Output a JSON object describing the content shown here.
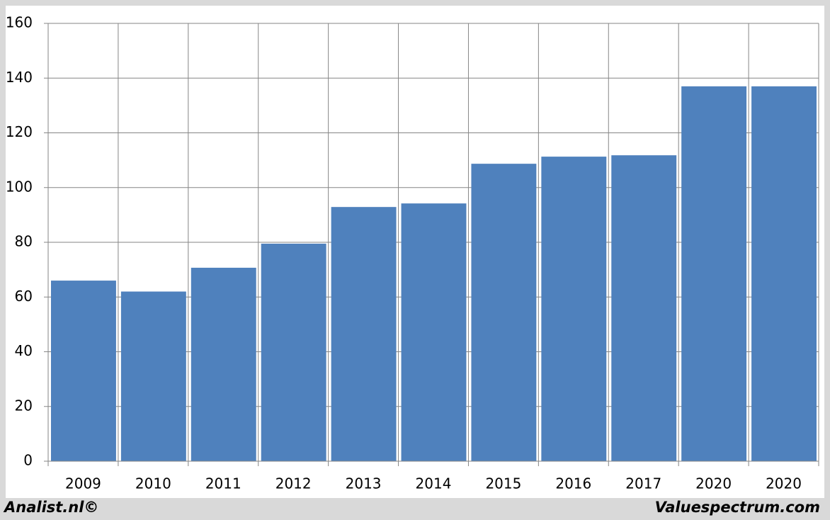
{
  "chart_data": {
    "type": "bar",
    "categories": [
      "2009",
      "2010",
      "2011",
      "2012",
      "2013",
      "2014",
      "2015",
      "2016",
      "2017",
      "2020",
      "2020"
    ],
    "values": [
      66.0,
      62.0,
      70.7,
      79.5,
      92.9,
      94.2,
      108.7,
      111.3,
      111.8,
      137.0,
      137.0
    ],
    "color": "#4f81bd",
    "ylim": [
      0,
      160
    ],
    "yticks": [
      0,
      20,
      40,
      60,
      80,
      100,
      120,
      140,
      160
    ],
    "grid": true,
    "annotations": [
      "Analist.nl©",
      "Valuespectrum.com"
    ]
  }
}
